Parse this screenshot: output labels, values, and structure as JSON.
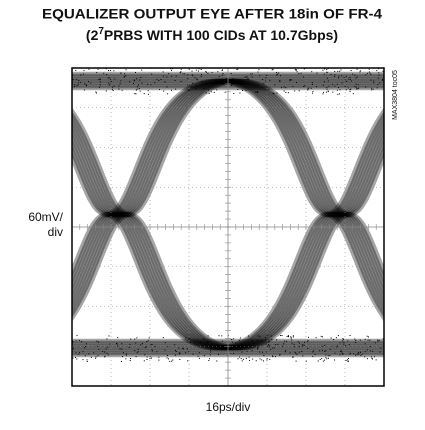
{
  "chart_data": {
    "type": "eye",
    "title": "EQUALIZER OUTPUT EYE AFTER 18in OF FR-4",
    "subtitle": {
      "base": "(2",
      "exponent": "7",
      "rest": "PRBS WITH 100 CIDs AT 10.7Gbps)"
    },
    "y_label": [
      "60mV/",
      "div"
    ],
    "x_label": "16ps/div",
    "note": "MAX3804 toc05",
    "grid": true,
    "color": "#000000"
  }
}
